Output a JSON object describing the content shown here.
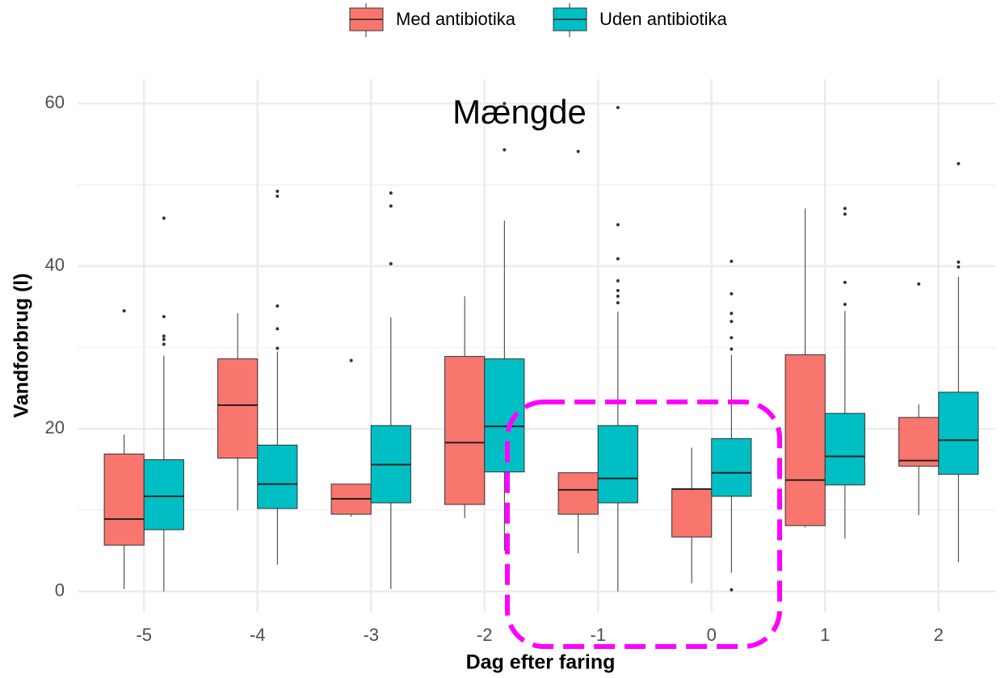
{
  "chart_data": {
    "type": "box",
    "title": "Mængde",
    "x_label": "Dag efter faring",
    "y_label": "Vandforbrug (l)",
    "categories": [
      "-5",
      "-4",
      "-3",
      "-2",
      "-1",
      "0",
      "1",
      "2"
    ],
    "legend_position": "top",
    "grid": true,
    "ylim": [
      -2.5,
      63
    ],
    "yticks": [
      0,
      20,
      40,
      60
    ],
    "y_minor_ticks": [
      10,
      30,
      50
    ],
    "series": [
      {
        "name": "Med antibiotika",
        "color": "#f8766d",
        "boxes": [
          {
            "whislo": 0.3,
            "q1": 5.7,
            "med": 8.9,
            "q3": 16.9,
            "whishi": 19.3,
            "fliers": [
              34.5
            ]
          },
          {
            "whislo": 10,
            "q1": 16.4,
            "med": 22.9,
            "q3": 28.6,
            "whishi": 34.2,
            "fliers": []
          },
          {
            "whislo": 9.2,
            "q1": 9.5,
            "med": 11.4,
            "q3": 13.2,
            "whishi": 13.2,
            "fliers": [
              28.4
            ]
          },
          {
            "whislo": 9.0,
            "q1": 10.7,
            "med": 18.3,
            "q3": 28.9,
            "whishi": 36.3,
            "fliers": []
          },
          {
            "whislo": 4.7,
            "q1": 9.5,
            "med": 12.5,
            "q3": 14.6,
            "whishi": 14.6,
            "fliers": [
              54.1
            ]
          },
          {
            "whislo": 1.0,
            "q1": 6.7,
            "med": 12.6,
            "q3": 12.6,
            "whishi": 17.7,
            "fliers": []
          },
          {
            "whislo": 7.9,
            "q1": 8.1,
            "med": 13.7,
            "q3": 29.1,
            "whishi": 47.1,
            "fliers": []
          },
          {
            "whislo": 9.4,
            "q1": 15.4,
            "med": 16.1,
            "q3": 21.4,
            "whishi": 23.0,
            "fliers": [
              37.8
            ]
          }
        ]
      },
      {
        "name": "Uden antibiotika",
        "color": "#00bfc4",
        "boxes": [
          {
            "whislo": 0,
            "q1": 7.6,
            "med": 11.7,
            "q3": 16.2,
            "whishi": 29,
            "fliers": [
              45.9,
              33.8,
              31.4,
              31.0,
              30.4
            ]
          },
          {
            "whislo": 3.3,
            "q1": 10.2,
            "med": 13.2,
            "q3": 18.0,
            "whishi": 29.5,
            "fliers": [
              29.9,
              32.3,
              35.1,
              48.6,
              49.2
            ]
          },
          {
            "whislo": 0.3,
            "q1": 10.9,
            "med": 15.6,
            "q3": 20.4,
            "whishi": 33.7,
            "fliers": [
              40.3,
              47.4,
              49.0
            ]
          },
          {
            "whislo": 5.0,
            "q1": 14.7,
            "med": 20.3,
            "q3": 28.6,
            "whishi": 45.6,
            "fliers": [
              54.3,
              60
            ]
          },
          {
            "whislo": 0,
            "q1": 10.9,
            "med": 13.9,
            "q3": 20.4,
            "whishi": 34.4,
            "fliers": [
              35.5,
              36.3,
              37.0,
              38.2,
              40.9,
              45.1,
              59.5
            ]
          },
          {
            "whislo": 2.3,
            "q1": 11.7,
            "med": 14.6,
            "q3": 18.8,
            "whishi": 29.1,
            "fliers": [
              29.8,
              31.2,
              33.2,
              34.2,
              36.6,
              40.6,
              0.2
            ]
          },
          {
            "whislo": 6.5,
            "q1": 13.1,
            "med": 16.6,
            "q3": 21.9,
            "whishi": 34.5,
            "fliers": [
              35.3,
              38.0,
              46.4,
              47.1
            ]
          },
          {
            "whislo": 3.6,
            "q1": 14.4,
            "med": 18.6,
            "q3": 24.5,
            "whishi": 38.7,
            "fliers": [
              39.9,
              40.5,
              52.6
            ]
          }
        ]
      }
    ]
  }
}
